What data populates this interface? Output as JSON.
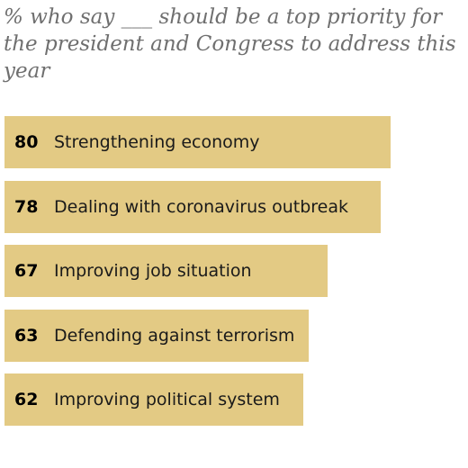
{
  "chart_data": {
    "type": "bar",
    "orientation": "horizontal",
    "title": "% who say ___ should be a top priority for the president and Congress to address this year",
    "categories": [
      "Strengthening economy",
      "Dealing with coronavirus outbreak",
      "Improving job situation",
      "Defending against terrorism",
      "Improving political system"
    ],
    "values": [
      80,
      78,
      67,
      63,
      62
    ],
    "xlim": [
      0,
      80
    ],
    "bar_color": "#e3ca84",
    "grid": false,
    "legend": "none"
  }
}
